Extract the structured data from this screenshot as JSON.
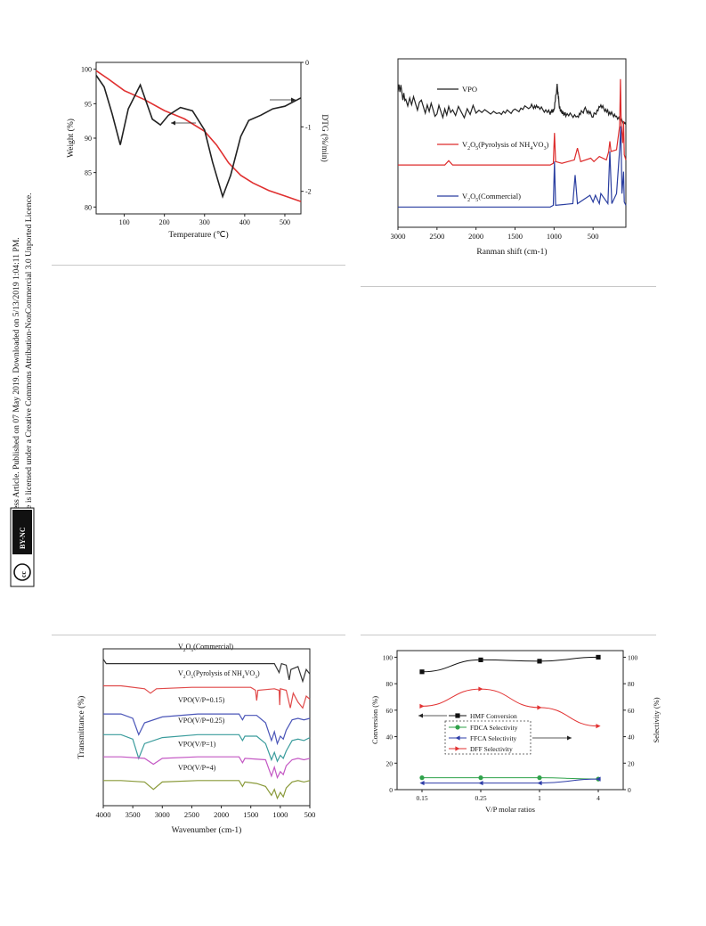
{
  "sidebar": {
    "line1": "Open Access Article. Published on 07 May 2019. Downloaded on 5/13/2019 1:04:11 PM.",
    "line2": "This article is licensed under a Creative Commons Attribution-NonCommercial 3.0 Unported Licence.",
    "badge_cc": "cc",
    "badge_by": "BY-NC"
  },
  "chart_data": [
    {
      "id": "tga",
      "type": "line",
      "xlabel": "Temperature (℃)",
      "ylabel": "Weight (%)",
      "y2label": "DTG (%/min)",
      "xlim": [
        30,
        540
      ],
      "ylim": [
        79,
        101
      ],
      "y2lim": [
        -2.35,
        0
      ],
      "xticks": [
        100,
        200,
        300,
        400,
        500
      ],
      "yticks": [
        80,
        85,
        90,
        95,
        100
      ],
      "y2ticks": [
        0,
        -1,
        -2
      ],
      "series": [
        {
          "axis": "left",
          "color": "#e03030",
          "x": [
            30,
            60,
            100,
            150,
            200,
            250,
            300,
            330,
            360,
            390,
            420,
            460,
            500,
            540
          ],
          "y": [
            99.8,
            98.6,
            96.9,
            95.6,
            94.0,
            92.8,
            91.0,
            89.0,
            86.4,
            84.6,
            83.5,
            82.4,
            81.6,
            80.8
          ]
        },
        {
          "axis": "right",
          "color": "#222222",
          "x": [
            30,
            50,
            70,
            90,
            110,
            140,
            170,
            190,
            210,
            240,
            270,
            300,
            320,
            345,
            365,
            390,
            410,
            440,
            470,
            500,
            540
          ],
          "y": [
            -0.2,
            -0.38,
            -0.8,
            -1.28,
            -0.72,
            -0.35,
            -0.88,
            -0.97,
            -0.82,
            -0.7,
            -0.75,
            -1.05,
            -1.55,
            -2.08,
            -1.75,
            -1.15,
            -0.9,
            -0.82,
            -0.72,
            -0.68,
            -0.55
          ]
        }
      ]
    },
    {
      "id": "raman",
      "type": "line",
      "xlabel": "Ranman shift (cm-1)",
      "ylabel": "",
      "xlim": [
        3000,
        80
      ],
      "ylim": [
        0,
        10
      ],
      "xticks": [
        3000,
        2500,
        2000,
        1500,
        1000,
        500
      ],
      "series": [
        {
          "name": "VPO",
          "legend": "VPO",
          "color": "#222222",
          "x": [
            3000,
            2900,
            2700,
            2500,
            2300,
            2000,
            1700,
            1500,
            1300,
            1200,
            1050,
            1000,
            960,
            930,
            900,
            850,
            700,
            600,
            500,
            400,
            300,
            200,
            80
          ],
          "y": [
            8.4,
            7.6,
            7.2,
            6.9,
            6.8,
            6.9,
            6.8,
            6.9,
            7.2,
            7.1,
            6.8,
            7.0,
            8.4,
            7.1,
            6.8,
            6.7,
            6.6,
            7.0,
            6.6,
            7.2,
            6.8,
            6.6,
            6.1
          ]
        },
        {
          "name": "V2O5 (pyrolysis)",
          "legend": "V2O5(Pyrolysis of NH4VO3)",
          "color": "#dd2b2b",
          "x": [
            3000,
            2400,
            2350,
            2300,
            1050,
            1010,
            995,
            980,
            900,
            740,
            700,
            660,
            530,
            490,
            420,
            330,
            300,
            285,
            270,
            200,
            160,
            150,
            140,
            120,
            110,
            100,
            80
          ],
          "y": [
            3.7,
            3.7,
            3.95,
            3.7,
            3.7,
            3.8,
            5.6,
            3.9,
            3.8,
            4.0,
            4.7,
            3.9,
            4.1,
            3.9,
            4.2,
            4.0,
            4.5,
            5.1,
            4.5,
            4.6,
            6.0,
            8.8,
            6.2,
            5.0,
            6.3,
            4.3,
            4.0
          ]
        },
        {
          "name": "V2O5 (commercial)",
          "legend": "V2O5(Commercial)",
          "color": "#2a3ea0",
          "x": [
            3000,
            1050,
            1010,
            995,
            980,
            760,
            730,
            700,
            540,
            500,
            470,
            420,
            400,
            310,
            285,
            260,
            200,
            160,
            145,
            130,
            110,
            100,
            80
          ],
          "y": [
            1.2,
            1.2,
            1.3,
            3.9,
            1.3,
            1.4,
            3.1,
            1.4,
            1.9,
            1.5,
            1.9,
            1.4,
            2.0,
            1.4,
            4.5,
            1.4,
            2.0,
            4.6,
            6.0,
            2.0,
            3.3,
            1.5,
            1.3
          ]
        }
      ]
    },
    {
      "id": "ftir",
      "type": "line",
      "xlabel": "Wavenumber (cm-1)",
      "ylabel": "Transmittance (%)",
      "xlim": [
        4000,
        500
      ],
      "ylim": [
        0,
        10
      ],
      "xticks": [
        4000,
        3500,
        3000,
        2500,
        2000,
        1500,
        1000,
        500
      ],
      "series": [
        {
          "name": "V2O5 commercial",
          "legend": "V2O5(Commercial)",
          "color": "#333333",
          "x": [
            4000,
            3950,
            3800,
            3000,
            2000,
            1100,
            1020,
            980,
            900,
            850,
            820,
            700,
            620,
            560,
            500
          ],
          "y": [
            9.3,
            9.0,
            9.0,
            9.0,
            9.0,
            9.0,
            8.4,
            9.0,
            8.9,
            7.9,
            8.6,
            8.8,
            7.8,
            8.6,
            8.3
          ]
        },
        {
          "name": "V2O5 pyrolysis",
          "legend": "V2O5(Pyrolysis of NH4VO3)",
          "color": "#e04a4a",
          "x": [
            4000,
            3700,
            3300,
            3200,
            3100,
            2500,
            1500,
            1420,
            1400,
            1380,
            1100,
            1020,
            1010,
            1000,
            900,
            830,
            780,
            700,
            620,
            560,
            500
          ],
          "y": [
            7.5,
            7.5,
            7.3,
            7.0,
            7.3,
            7.4,
            7.4,
            7.2,
            6.5,
            7.2,
            7.3,
            7.2,
            6.2,
            7.3,
            7.2,
            6.0,
            7.0,
            6.4,
            6.0,
            6.8,
            6.6
          ]
        },
        {
          "name": "VPO 0.15",
          "legend": "VPO(V/P=0.15)",
          "color": "#4a55b8",
          "x": [
            4000,
            3700,
            3500,
            3400,
            3300,
            3000,
            2400,
            1700,
            1640,
            1600,
            1400,
            1250,
            1150,
            1100,
            1050,
            1000,
            950,
            900,
            800,
            700,
            600,
            500
          ],
          "y": [
            5.6,
            5.6,
            5.3,
            4.2,
            5.0,
            5.4,
            5.6,
            5.6,
            5.2,
            5.5,
            5.5,
            5.0,
            3.8,
            4.4,
            3.6,
            4.1,
            3.9,
            4.5,
            5.2,
            5.3,
            5.2,
            5.3
          ]
        },
        {
          "name": "VPO 0.25",
          "legend": "VPO(V/P=0.25)",
          "color": "#3a9c9c",
          "x": [
            4000,
            3700,
            3500,
            3400,
            3300,
            3000,
            2400,
            1700,
            1640,
            1600,
            1400,
            1250,
            1150,
            1100,
            1050,
            1000,
            950,
            900,
            800,
            700,
            600,
            500
          ],
          "y": [
            4.2,
            4.2,
            3.9,
            2.6,
            3.6,
            4.0,
            4.2,
            4.2,
            3.8,
            4.1,
            4.1,
            3.6,
            2.5,
            3.0,
            2.4,
            2.8,
            2.6,
            3.1,
            3.8,
            3.9,
            3.8,
            4.0
          ]
        },
        {
          "name": "VPO 1",
          "legend": "VPO(V/P=1)",
          "color": "#c458c4",
          "x": [
            4000,
            3700,
            3300,
            3150,
            3000,
            2400,
            1700,
            1640,
            1600,
            1250,
            1150,
            1100,
            1050,
            1000,
            950,
            900,
            800,
            700,
            600,
            500
          ],
          "y": [
            2.7,
            2.7,
            2.6,
            2.2,
            2.6,
            2.7,
            2.7,
            2.3,
            2.6,
            2.5,
            1.4,
            2.0,
            1.3,
            1.7,
            1.5,
            2.1,
            2.5,
            2.6,
            2.5,
            2.6
          ]
        },
        {
          "name": "VPO 4",
          "legend": "VPO(V/P=4)",
          "color": "#8a9a3a",
          "x": [
            4000,
            3700,
            3300,
            3150,
            3000,
            2400,
            1700,
            1640,
            1600,
            1400,
            1250,
            1150,
            1100,
            1050,
            1000,
            950,
            900,
            800,
            700,
            600,
            500
          ],
          "y": [
            1.1,
            1.1,
            1.0,
            0.5,
            1.0,
            1.1,
            1.1,
            0.7,
            1.0,
            0.9,
            0.7,
            0.1,
            0.5,
            -0.1,
            0.3,
            0.0,
            0.6,
            1.0,
            1.1,
            1.0,
            1.1
          ]
        }
      ]
    },
    {
      "id": "conv",
      "type": "line",
      "categories": [
        "0.15",
        "0.25",
        "1",
        "4"
      ],
      "xlabel": "V/P molar ratios",
      "ylabel": "Conversion (%)",
      "y2label": "Selectivity (%)",
      "ylim": [
        0,
        105
      ],
      "y2lim": [
        0,
        105
      ],
      "yticks": [
        0,
        20,
        40,
        60,
        80,
        100
      ],
      "y2ticks": [
        0,
        20,
        40,
        60,
        80,
        100
      ],
      "legend_position": "center",
      "series": [
        {
          "name": "HMF Conversion",
          "axis": "left",
          "color": "#111111",
          "marker": "square",
          "values": [
            89,
            98,
            97,
            100
          ]
        },
        {
          "name": "FDCA Selectivity",
          "axis": "right",
          "color": "#2fa24a",
          "marker": "circle",
          "values": [
            9,
            9,
            9,
            8
          ]
        },
        {
          "name": "FFCA Selectivity",
          "axis": "right",
          "color": "#2e3da8",
          "marker": "triangle-left",
          "values": [
            5,
            5,
            5,
            8
          ]
        },
        {
          "name": "DFF Selectivity",
          "axis": "right",
          "color": "#e23232",
          "marker": "triangle-right",
          "values": [
            63,
            76,
            62,
            48
          ]
        }
      ]
    }
  ]
}
